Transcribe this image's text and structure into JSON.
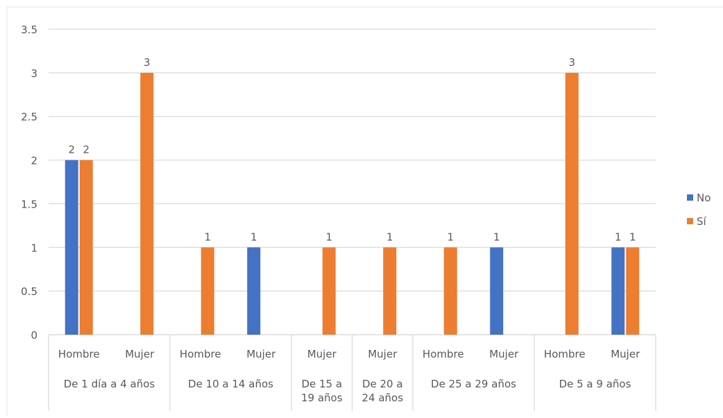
{
  "chart_data": {
    "type": "bar",
    "title": "",
    "xlabel": "",
    "ylabel": "",
    "ylim": [
      0,
      3.5
    ],
    "y_ticks": [
      "0",
      "0.5",
      "1",
      "1.5",
      "2",
      "2.5",
      "3",
      "3.5"
    ],
    "grid": true,
    "legend_position": "right",
    "groups": [
      {
        "label": "De 1 día a 4 años",
        "categories": [
          "Hombre",
          "Mujer"
        ]
      },
      {
        "label": "De 10 a 14 años",
        "categories": [
          "Hombre",
          "Mujer"
        ]
      },
      {
        "label": "De 15 a 19 años",
        "categories": [
          "Mujer"
        ]
      },
      {
        "label": "De 20 a 24 años",
        "categories": [
          "Mujer"
        ]
      },
      {
        "label": "De 25 a 29 años",
        "categories": [
          "Hombre",
          "Mujer"
        ]
      },
      {
        "label": "De 5 a 9 años",
        "categories": [
          "Hombre",
          "Mujer"
        ]
      }
    ],
    "series": [
      {
        "name": "No",
        "color": "#4472C4",
        "values": [
          2,
          null,
          null,
          1,
          null,
          null,
          null,
          1,
          null,
          1
        ]
      },
      {
        "name": "Sí",
        "color": "#ED7D31",
        "values": [
          2,
          3,
          1,
          null,
          1,
          1,
          1,
          null,
          3,
          1
        ]
      }
    ]
  },
  "colors": {
    "grid": "#d9d9d9",
    "axis_text": "#595959"
  }
}
